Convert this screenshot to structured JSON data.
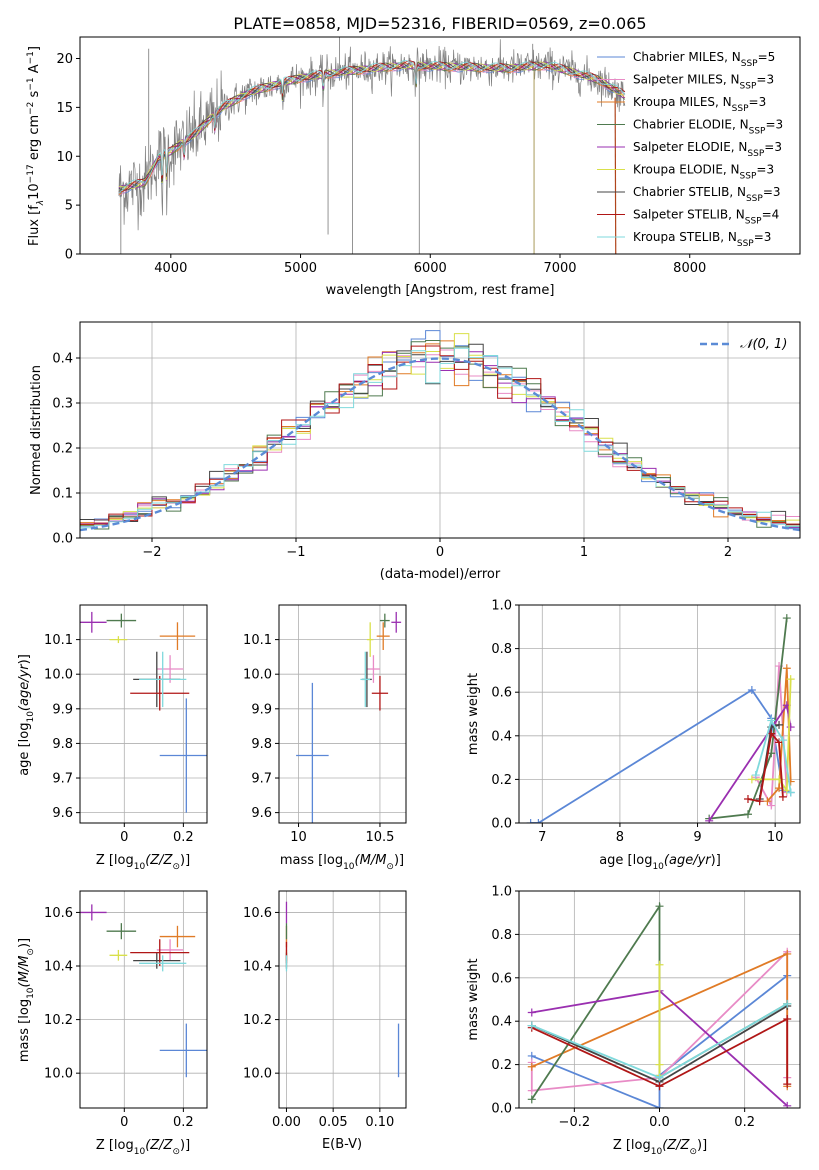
{
  "title": "PLATE=0858, MJD=52316, FIBERID=0569, z=0.065",
  "colors": {
    "chabrier_miles": "#5b87d6",
    "salpeter_miles": "#e88bc6",
    "kroupa_miles": "#e07b26",
    "chabrier_elodie": "#4f7a4f",
    "salpeter_elodie": "#9a2fb0",
    "kroupa_elodie": "#d9e04a",
    "chabrier_stelib": "#444444",
    "salpeter_stelib": "#b01616",
    "kroupa_stelib": "#7fd9dc",
    "data_grey": "#808080",
    "normal_fit": "#5b8bd6"
  },
  "legend_spectrum": [
    {
      "label": "Chabrier MILES, N",
      "sub": "SSP",
      "tail": "=5",
      "color": "#5b87d6"
    },
    {
      "label": "Salpeter MILES, N",
      "sub": "SSP",
      "tail": "=3",
      "color": "#e88bc6"
    },
    {
      "label": "Kroupa MILES, N",
      "sub": "SSP",
      "tail": "=3",
      "color": "#e07b26"
    },
    {
      "label": "Chabrier ELODIE, N",
      "sub": "SSP",
      "tail": "=3",
      "color": "#4f7a4f"
    },
    {
      "label": "Salpeter ELODIE, N",
      "sub": "SSP",
      "tail": "=3",
      "color": "#9a2fb0"
    },
    {
      "label": "Kroupa ELODIE, N",
      "sub": "SSP",
      "tail": "=3",
      "color": "#d9e04a"
    },
    {
      "label": "Chabrier STELIB, N",
      "sub": "SSP",
      "tail": "=3",
      "color": "#444444"
    },
    {
      "label": "Salpeter STELIB, N",
      "sub": "SSP",
      "tail": "=4",
      "color": "#b01616"
    },
    {
      "label": "Kroupa STELIB, N",
      "sub": "SSP",
      "tail": "=3",
      "color": "#7fd9dc"
    }
  ],
  "legend_hist": "𝒩(0, 1)",
  "chart_data": [
    {
      "id": "spectrum",
      "type": "line",
      "xlabel": "wavelength [Angstrom, rest frame]",
      "ylabel": "Flux [f",
      "ylabel_parts": [
        "Flux [f",
        "λ",
        "10",
        "−17",
        " erg cm",
        "−2",
        " s",
        "−1",
        " A",
        "−1",
        "]"
      ],
      "xlim": [
        3300,
        8850
      ],
      "ylim": [
        0,
        22.2
      ],
      "xticks": [
        4000,
        5000,
        6000,
        7000,
        8000
      ],
      "yticks": [
        0,
        5,
        10,
        15,
        20
      ],
      "continuum": [
        [
          3600,
          6.5
        ],
        [
          3700,
          7.0
        ],
        [
          3800,
          7.3
        ],
        [
          3900,
          9.8
        ],
        [
          4000,
          10.5
        ],
        [
          4100,
          11.5
        ],
        [
          4200,
          12.4
        ],
        [
          4300,
          13.8
        ],
        [
          4400,
          15.0
        ],
        [
          4600,
          16.5
        ],
        [
          4800,
          17.3
        ],
        [
          5000,
          18.0
        ],
        [
          5200,
          18.4
        ],
        [
          5500,
          18.9
        ],
        [
          5800,
          19.3
        ],
        [
          6000,
          19.2
        ],
        [
          6300,
          19.1
        ],
        [
          6600,
          19.0
        ],
        [
          6900,
          19.3
        ],
        [
          7100,
          18.6
        ],
        [
          7300,
          17.8
        ],
        [
          7500,
          16.2
        ]
      ]
    },
    {
      "id": "residual_hist",
      "type": "histogram",
      "xlabel": "(data-model)/error",
      "ylabel": "Normed distribution",
      "xlim": [
        -2.5,
        2.5
      ],
      "ylim": [
        0,
        0.48
      ],
      "xticks": [
        -2,
        -1,
        0,
        1,
        2
      ],
      "yticks": [
        0.0,
        0.1,
        0.2,
        0.3,
        0.4
      ],
      "bin_width": 0.1,
      "gaussian": {
        "mu": 0,
        "sigma": 1
      }
    },
    {
      "id": "age_vs_Z",
      "type": "scatter",
      "xlabel": "Z [log",
      "ylabel": "age  [log",
      "xlim": [
        -0.15,
        0.28
      ],
      "ylim": [
        9.57,
        10.2
      ],
      "xticks": [
        0.0,
        0.2
      ],
      "yticks": [
        9.6,
        9.7,
        9.8,
        9.9,
        10.0,
        10.1
      ],
      "points": [
        {
          "x": 0.21,
          "xerr": 0.09,
          "y": 9.765,
          "yerr": 0.165,
          "color": "#5b87d6"
        },
        {
          "x": 0.155,
          "xerr": 0.045,
          "y": 10.015,
          "yerr": 0.04,
          "color": "#e88bc6"
        },
        {
          "x": 0.18,
          "xerr": 0.06,
          "y": 10.11,
          "yerr": 0.04,
          "color": "#e07b26"
        },
        {
          "x": -0.01,
          "xerr": 0.05,
          "y": 10.155,
          "yerr": 0.02,
          "color": "#4f7a4f"
        },
        {
          "x": -0.11,
          "xerr": 0.05,
          "y": 10.15,
          "yerr": 0.03,
          "color": "#9a2fb0"
        },
        {
          "x": -0.02,
          "xerr": 0.03,
          "y": 10.1,
          "yerr": 0.01,
          "color": "#d9e04a"
        },
        {
          "x": 0.11,
          "xerr": 0.08,
          "y": 9.985,
          "yerr": 0.08,
          "color": "#444444"
        },
        {
          "x": 0.12,
          "xerr": 0.1,
          "y": 9.945,
          "yerr": 0.05,
          "color": "#b01616"
        },
        {
          "x": 0.13,
          "xerr": 0.08,
          "y": 9.985,
          "yerr": 0.08,
          "color": "#7fd9dc"
        }
      ]
    },
    {
      "id": "age_vs_mass",
      "type": "scatter",
      "xlabel": "mass [log",
      "ylabel": "",
      "xlim": [
        9.88,
        10.66
      ],
      "ylim": [
        9.57,
        10.2
      ],
      "xticks": [
        10.0,
        10.5
      ],
      "yticks": [
        9.6,
        9.7,
        9.8,
        9.9,
        10.0,
        10.1
      ],
      "points": [
        {
          "x": 10.085,
          "xerr": 0.1,
          "y": 9.765,
          "yerr": 0.21,
          "color": "#5b87d6"
        },
        {
          "x": 10.46,
          "xerr": 0.04,
          "y": 10.015,
          "yerr": 0.04,
          "color": "#e88bc6"
        },
        {
          "x": 10.52,
          "xerr": 0.04,
          "y": 10.11,
          "yerr": 0.04,
          "color": "#e07b26"
        },
        {
          "x": 10.53,
          "xerr": 0.03,
          "y": 10.155,
          "yerr": 0.02,
          "color": "#4f7a4f"
        },
        {
          "x": 10.6,
          "xerr": 0.03,
          "y": 10.15,
          "yerr": 0.03,
          "color": "#9a2fb0"
        },
        {
          "x": 10.44,
          "xerr": 0.02,
          "y": 10.1,
          "yerr": 0.05,
          "color": "#d9e04a"
        },
        {
          "x": 10.42,
          "xerr": 0.03,
          "y": 9.985,
          "yerr": 0.08,
          "color": "#444444"
        },
        {
          "x": 10.5,
          "xerr": 0.05,
          "y": 9.945,
          "yerr": 0.05,
          "color": "#b01616"
        },
        {
          "x": 10.41,
          "xerr": 0.03,
          "y": 9.985,
          "yerr": 0.08,
          "color": "#7fd9dc"
        }
      ]
    },
    {
      "id": "mass_weight_vs_age",
      "type": "line",
      "xlabel": "age  [log",
      "ylabel": "mass weight",
      "xlim": [
        6.7,
        10.32
      ],
      "ylim": [
        0,
        1.0
      ],
      "xticks": [
        7,
        8,
        9,
        10
      ],
      "yticks": [
        0.0,
        0.2,
        0.4,
        0.6,
        0.8,
        1.0
      ],
      "series": [
        {
          "color": "#5b87d6",
          "x": [
            6.85,
            6.95,
            9.7,
            9.95,
            10.1,
            10.2
          ],
          "y": [
            0.0,
            0.0,
            0.61,
            0.48,
            0.15,
            0.14
          ]
        },
        {
          "color": "#e88bc6",
          "x": [
            9.75,
            9.95,
            10.05,
            10.15
          ],
          "y": [
            0.21,
            0.08,
            0.72,
            0.14
          ]
        },
        {
          "color": "#e07b26",
          "x": [
            9.9,
            10.05,
            10.15,
            10.2
          ],
          "y": [
            0.1,
            0.16,
            0.71,
            0.19
          ]
        },
        {
          "color": "#4f7a4f",
          "x": [
            9.15,
            9.65,
            9.95,
            10.15
          ],
          "y": [
            0.02,
            0.04,
            0.32,
            0.94
          ]
        },
        {
          "color": "#9a2fb0",
          "x": [
            9.15,
            10.15,
            10.2
          ],
          "y": [
            0.01,
            0.54,
            0.44
          ]
        },
        {
          "color": "#d9e04a",
          "x": [
            9.7,
            10.05,
            10.15,
            10.2
          ],
          "y": [
            0.2,
            0.2,
            0.15,
            0.66
          ]
        },
        {
          "color": "#444444",
          "x": [
            9.8,
            9.95,
            10.05
          ],
          "y": [
            0.11,
            0.44,
            0.45
          ]
        },
        {
          "color": "#b01616",
          "x": [
            9.65,
            9.8,
            9.95,
            10.05,
            10.1
          ],
          "y": [
            0.11,
            0.1,
            0.41,
            0.37,
            0.12
          ]
        },
        {
          "color": "#7fd9dc",
          "x": [
            9.75,
            9.95,
            10.1,
            10.2
          ],
          "y": [
            0.22,
            0.47,
            0.38,
            0.14
          ]
        }
      ]
    },
    {
      "id": "mass_vs_Z",
      "type": "scatter",
      "xlabel": "Z [log",
      "ylabel": "mass [log",
      "xlim": [
        -0.15,
        0.28
      ],
      "ylim": [
        9.87,
        10.68
      ],
      "xticks": [
        0.0,
        0.2
      ],
      "yticks": [
        10.0,
        10.2,
        10.4,
        10.6
      ],
      "points": [
        {
          "x": 0.21,
          "xerr": 0.09,
          "y": 10.085,
          "yerr": 0.1,
          "color": "#5b87d6"
        },
        {
          "x": 0.155,
          "xerr": 0.045,
          "y": 10.46,
          "yerr": 0.04,
          "color": "#e88bc6"
        },
        {
          "x": 0.18,
          "xerr": 0.06,
          "y": 10.51,
          "yerr": 0.04,
          "color": "#e07b26"
        },
        {
          "x": -0.01,
          "xerr": 0.05,
          "y": 10.53,
          "yerr": 0.03,
          "color": "#4f7a4f"
        },
        {
          "x": -0.11,
          "xerr": 0.05,
          "y": 10.6,
          "yerr": 0.03,
          "color": "#9a2fb0"
        },
        {
          "x": -0.02,
          "xerr": 0.03,
          "y": 10.44,
          "yerr": 0.02,
          "color": "#d9e04a"
        },
        {
          "x": 0.11,
          "xerr": 0.08,
          "y": 10.42,
          "yerr": 0.03,
          "color": "#444444"
        },
        {
          "x": 0.12,
          "xerr": 0.1,
          "y": 10.45,
          "yerr": 0.05,
          "color": "#b01616"
        },
        {
          "x": 0.13,
          "xerr": 0.08,
          "y": 10.41,
          "yerr": 0.03,
          "color": "#7fd9dc"
        }
      ]
    },
    {
      "id": "mass_vs_EBV",
      "type": "scatter",
      "xlabel": "E(B-V)",
      "ylabel": "",
      "xlim": [
        -0.008,
        0.128
      ],
      "ylim": [
        9.87,
        10.68
      ],
      "xticks": [
        0.0,
        0.05,
        0.1
      ],
      "xticklabels": [
        "0.00",
        "0.05",
        "0.10"
      ],
      "yticks": [
        10.0,
        10.2,
        10.4,
        10.6
      ],
      "points": [
        {
          "x": 0.12,
          "xerr": 0,
          "y": 10.085,
          "yerr": 0.1,
          "color": "#5b87d6"
        },
        {
          "x": 0.0,
          "xerr": 0,
          "y": 10.46,
          "yerr": 0.04,
          "color": "#e88bc6"
        },
        {
          "x": 0.0,
          "xerr": 0,
          "y": 10.51,
          "yerr": 0.04,
          "color": "#e07b26"
        },
        {
          "x": 0.0,
          "xerr": 0,
          "y": 10.53,
          "yerr": 0.03,
          "color": "#4f7a4f"
        },
        {
          "x": 0.0,
          "xerr": 0,
          "y": 10.6,
          "yerr": 0.04,
          "color": "#9a2fb0"
        },
        {
          "x": 0.0,
          "xerr": 0,
          "y": 10.44,
          "yerr": 0.02,
          "color": "#d9e04a"
        },
        {
          "x": 0.0,
          "xerr": 0,
          "y": 10.42,
          "yerr": 0.03,
          "color": "#444444"
        },
        {
          "x": 0.0,
          "xerr": 0,
          "y": 10.45,
          "yerr": 0.04,
          "color": "#b01616"
        },
        {
          "x": 0.0,
          "xerr": 0,
          "y": 10.41,
          "yerr": 0.03,
          "color": "#7fd9dc"
        }
      ]
    },
    {
      "id": "mass_weight_vs_Z",
      "type": "line",
      "xlabel": "Z [log",
      "ylabel": "mass weight",
      "xlim": [
        -0.33,
        0.33
      ],
      "ylim": [
        0,
        1.0
      ],
      "xticks": [
        -0.2,
        0.0,
        0.2
      ],
      "xticklabels": [
        "−0.2",
        "0.0",
        "0.2"
      ],
      "yticks": [
        0.0,
        0.2,
        0.4,
        0.6,
        0.8,
        1.0
      ],
      "series": [
        {
          "color": "#5b87d6",
          "x": [
            -0.3,
            0.0,
            0.0,
            0.3
          ],
          "y": [
            0.24,
            0.0,
            0.15,
            0.61
          ]
        },
        {
          "color": "#e88bc6",
          "x": [
            -0.3,
            -0.3,
            0.0,
            0.3,
            0.3
          ],
          "y": [
            0.21,
            0.08,
            0.14,
            0.72,
            0.14
          ]
        },
        {
          "color": "#e07b26",
          "x": [
            -0.3,
            0.3,
            0.3
          ],
          "y": [
            0.19,
            0.71,
            0.1
          ]
        },
        {
          "color": "#4f7a4f",
          "x": [
            -0.3,
            0.0,
            0.0,
            0.3
          ],
          "y": [
            0.04,
            0.93,
            0.14,
            0.48
          ]
        },
        {
          "color": "#9a2fb0",
          "x": [
            -0.3,
            0.0,
            0.3
          ],
          "y": [
            0.44,
            0.54,
            0.01
          ]
        },
        {
          "color": "#d9e04a",
          "x": [
            0.0,
            0.0,
            0.0
          ],
          "y": [
            0.2,
            0.66,
            0.15
          ]
        },
        {
          "color": "#444444",
          "x": [
            -0.3,
            0.0,
            0.3
          ],
          "y": [
            0.38,
            0.12,
            0.47
          ]
        },
        {
          "color": "#b01616",
          "x": [
            -0.3,
            0.0,
            0.3,
            0.3
          ],
          "y": [
            0.37,
            0.1,
            0.41,
            0.11
          ]
        },
        {
          "color": "#7fd9dc",
          "x": [
            -0.3,
            0.0,
            0.3
          ],
          "y": [
            0.38,
            0.14,
            0.48
          ]
        }
      ]
    }
  ]
}
